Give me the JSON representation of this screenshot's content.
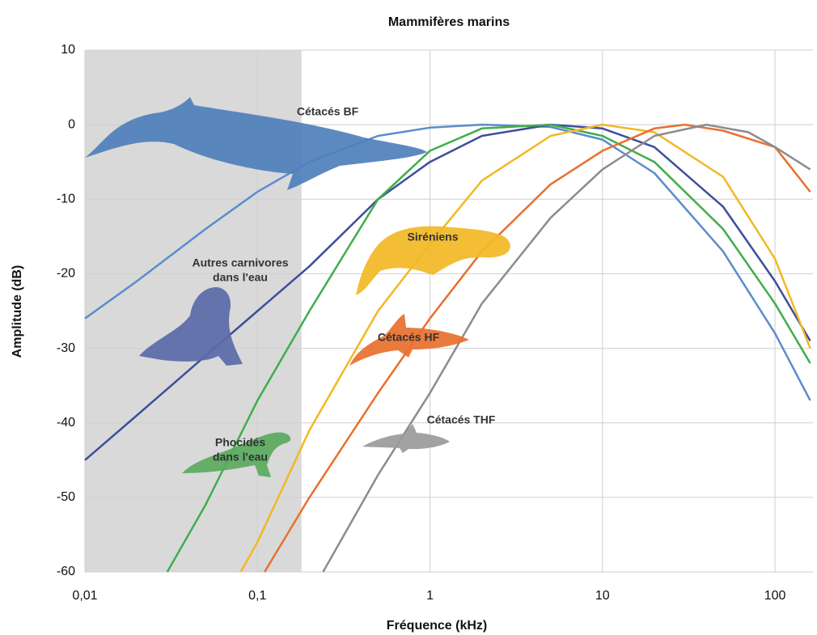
{
  "chart_data": {
    "type": "line",
    "title": "Mammifères marins",
    "x_label": "Fréquence (kHz)",
    "y_label": "Amplitude (dB)",
    "xscale": "log",
    "xlim": [
      0.01,
      166
    ],
    "ylim": [
      -60,
      10
    ],
    "xticks": [
      {
        "value": 0.01,
        "label": "0,01"
      },
      {
        "value": 0.1,
        "label": "0,1"
      },
      1,
      10,
      100
    ],
    "yticks": [
      -60,
      -50,
      -40,
      -30,
      -20,
      -10,
      0,
      10
    ],
    "grid": true,
    "shaded_xrange": [
      0.01,
      0.18
    ],
    "shaded_color": "#d9d9d9",
    "series": [
      {
        "label": [
          "Cétacés BF"
        ],
        "color": "#5b8ccc",
        "x": [
          0.01,
          0.02,
          0.05,
          0.1,
          0.2,
          0.5,
          1,
          2,
          5,
          10,
          20,
          50,
          100,
          160
        ],
        "values": [
          -26,
          -21,
          -14,
          -9,
          -5,
          -1.5,
          -0.4,
          0,
          -0.3,
          -2,
          -6.5,
          -17,
          -28,
          -37
        ]
      },
      {
        "label": [
          "Autres carnivores",
          "dans l'eau"
        ],
        "color": "#3d4f9a",
        "x": [
          0.01,
          0.02,
          0.05,
          0.1,
          0.2,
          0.5,
          1,
          2,
          5,
          10,
          20,
          50,
          100,
          160
        ],
        "values": [
          -45,
          -39,
          -31,
          -25,
          -19,
          -10,
          -5,
          -1.5,
          0,
          -0.5,
          -3,
          -11,
          -21,
          -29
        ]
      },
      {
        "label": [
          "Phocidés",
          "dans l'eau"
        ],
        "color": "#3fae4a",
        "x": [
          0.03,
          0.05,
          0.1,
          0.2,
          0.5,
          1,
          2,
          5,
          10,
          20,
          50,
          100,
          160
        ],
        "values": [
          -60,
          -51,
          -37,
          -25,
          -10,
          -3.5,
          -0.5,
          0,
          -1.5,
          -5,
          -14,
          -24,
          -32
        ]
      },
      {
        "label": [
          "Siréniens"
        ],
        "color": "#f2b824",
        "x": [
          0.08,
          0.1,
          0.2,
          0.5,
          1,
          2,
          5,
          10,
          20,
          50,
          100,
          160
        ],
        "values": [
          -60,
          -56,
          -41,
          -25,
          -16,
          -7.5,
          -1.5,
          0,
          -1,
          -7,
          -18,
          -30
        ]
      },
      {
        "label": [
          "Cétacés HF"
        ],
        "color": "#e8702e",
        "x": [
          0.11,
          0.2,
          0.5,
          1,
          2,
          5,
          10,
          20,
          30,
          50,
          100,
          160
        ],
        "values": [
          -60,
          -50,
          -36,
          -26,
          -17,
          -8,
          -3.5,
          -0.5,
          0,
          -0.8,
          -3,
          -9
        ]
      },
      {
        "label": [
          "Cétacés THF"
        ],
        "color": "#8c8c8c",
        "x": [
          0.24,
          0.5,
          1,
          2,
          5,
          10,
          20,
          40,
          70,
          100,
          160
        ],
        "values": [
          -60,
          -47,
          -36,
          -24,
          -12.5,
          -6,
          -1.5,
          0,
          -1,
          -3,
          -6
        ]
      }
    ]
  }
}
